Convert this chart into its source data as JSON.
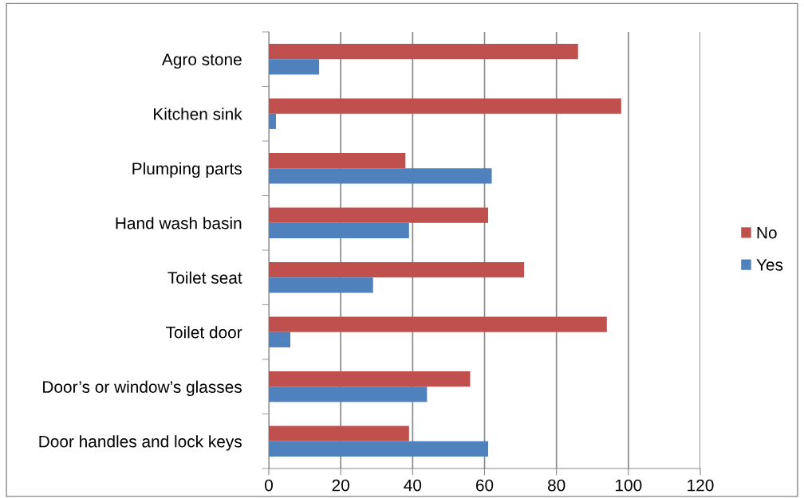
{
  "chart_data": {
    "type": "bar",
    "orientation": "horizontal",
    "categories": [
      "Agro stone",
      "Kitchen sink",
      "Plumping parts",
      "Hand wash basin",
      "Toilet seat",
      "Toilet door",
      "Door’s or window’s glasses",
      "Door handles and lock keys"
    ],
    "series": [
      {
        "name": "No",
        "color": "#c0504d",
        "values": [
          86,
          98,
          38,
          61,
          71,
          94,
          56,
          39
        ]
      },
      {
        "name": "Yes",
        "color": "#4f81bd",
        "values": [
          14,
          2,
          62,
          39,
          29,
          6,
          44,
          61
        ]
      }
    ],
    "xlim": [
      0,
      120
    ],
    "xticks": [
      0,
      20,
      40,
      60,
      80,
      100,
      120
    ],
    "grid": "x",
    "legend": "right"
  }
}
